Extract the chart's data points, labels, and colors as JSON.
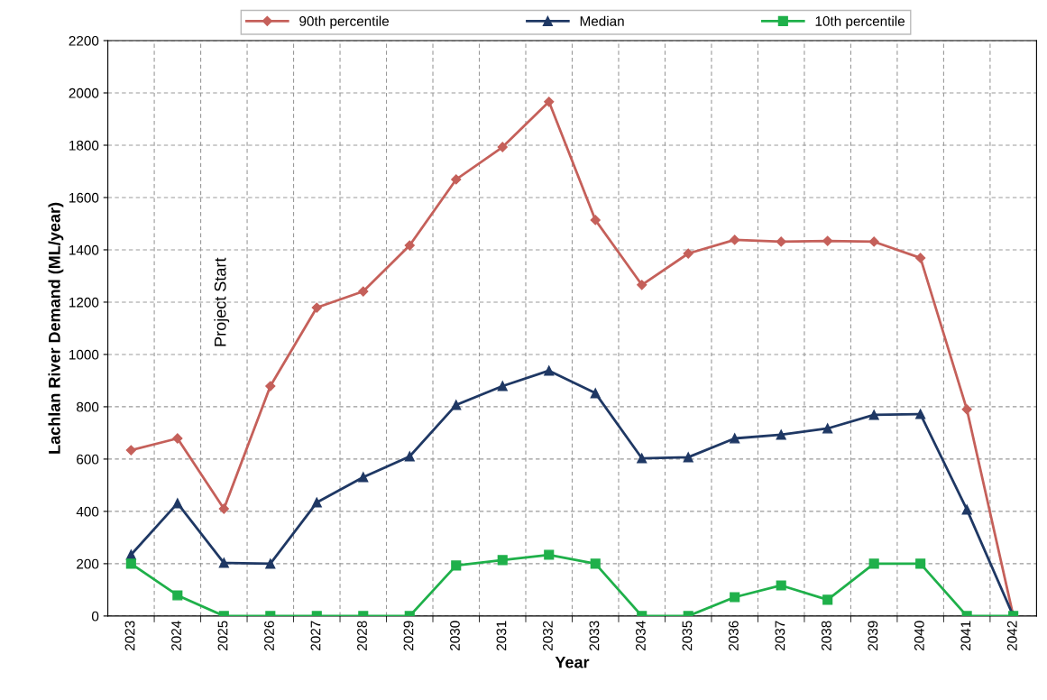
{
  "chart_data": {
    "type": "line",
    "xlabel": "Year",
    "ylabel": "Lachlan River Demand (ML/year)",
    "categories": [
      "2023",
      "2024",
      "2025",
      "2026",
      "2027",
      "2028",
      "2029",
      "2030",
      "2031",
      "2032",
      "2033",
      "2034",
      "2035",
      "2036",
      "2037",
      "2038",
      "2039",
      "2040",
      "2041",
      "2042"
    ],
    "series": [
      {
        "name": "90th percentile",
        "color": "#c5605a",
        "marker": "diamond",
        "values": [
          634,
          679,
          410,
          879,
          1179,
          1241,
          1417,
          1669,
          1793,
          1966,
          1514,
          1266,
          1386,
          1438,
          1431,
          1434,
          1431,
          1369,
          790,
          0
        ]
      },
      {
        "name": "Median",
        "color": "#1f3864",
        "marker": "triangle",
        "values": [
          234,
          431,
          203,
          200,
          434,
          531,
          610,
          807,
          879,
          938,
          852,
          603,
          607,
          679,
          693,
          717,
          769,
          772,
          407,
          0
        ]
      },
      {
        "name": "10th percentile",
        "color": "#1fb04a",
        "marker": "square",
        "values": [
          200,
          79,
          0,
          0,
          0,
          0,
          0,
          193,
          214,
          234,
          200,
          0,
          0,
          72,
          117,
          62,
          200,
          200,
          0,
          0
        ]
      }
    ],
    "ylim": [
      0,
      2200
    ],
    "yticks": [
      0,
      200,
      400,
      600,
      800,
      1000,
      1200,
      1400,
      1600,
      1800,
      2000,
      2200
    ],
    "grid": true,
    "legend": "top",
    "line_style": "solid",
    "annotations": [
      "Project Start"
    ]
  }
}
